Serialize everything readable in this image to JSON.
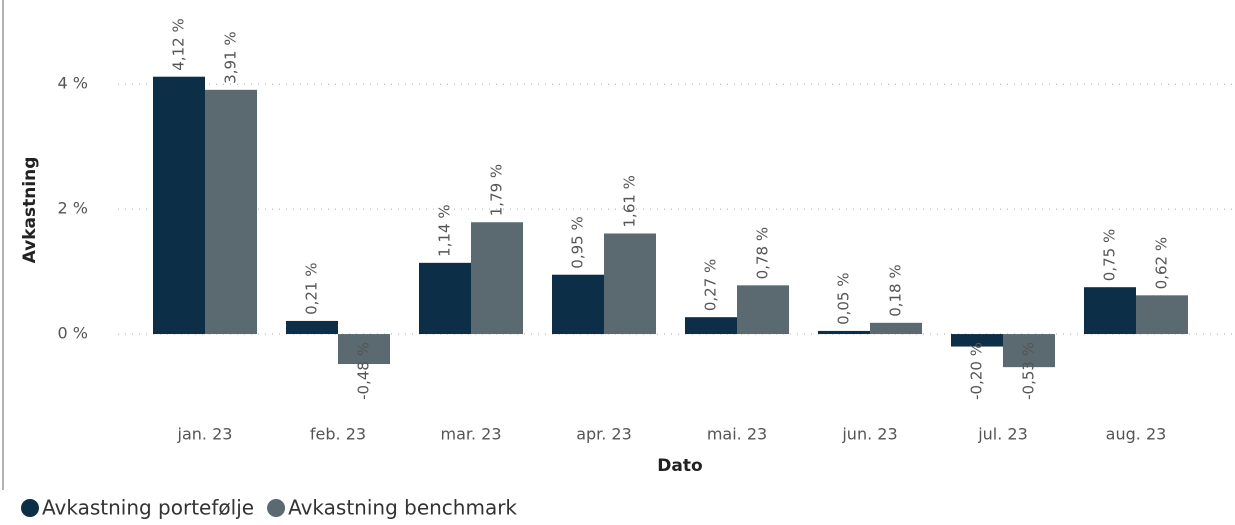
{
  "chart_data": {
    "type": "bar",
    "categories": [
      "jan. 23",
      "feb. 23",
      "mar. 23",
      "apr. 23",
      "mai. 23",
      "jun. 23",
      "jul. 23",
      "aug. 23"
    ],
    "series": [
      {
        "name": "Avkastning portefølje",
        "color": "#0d2e47",
        "values": [
          4.12,
          0.21,
          1.14,
          0.95,
          0.27,
          0.05,
          -0.2,
          0.75
        ],
        "value_labels": [
          "4,12 %",
          "0,21 %",
          "1,14 %",
          "0,95 %",
          "0,27 %",
          "0,05 %",
          "-0,20 %",
          "0,75 %"
        ]
      },
      {
        "name": "Avkastning benchmark",
        "color": "#5a6a70",
        "values": [
          3.91,
          -0.48,
          1.79,
          1.61,
          0.78,
          0.18,
          -0.53,
          0.62
        ],
        "value_labels": [
          "3,91 %",
          "-0,48 %",
          "1,79 %",
          "1,61 %",
          "0,78 %",
          "0,18 %",
          "-0,53 %",
          "0,62 %"
        ]
      }
    ],
    "xlabel": "Dato",
    "ylabel": "Avkastning",
    "ylim": [
      -1.2,
      5.3
    ],
    "yticks": [
      {
        "value": 0,
        "label": "0 %"
      },
      {
        "value": 2,
        "label": "2 %"
      },
      {
        "value": 4,
        "label": "4 %"
      }
    ],
    "grid": true,
    "legend": "bottom-left"
  }
}
